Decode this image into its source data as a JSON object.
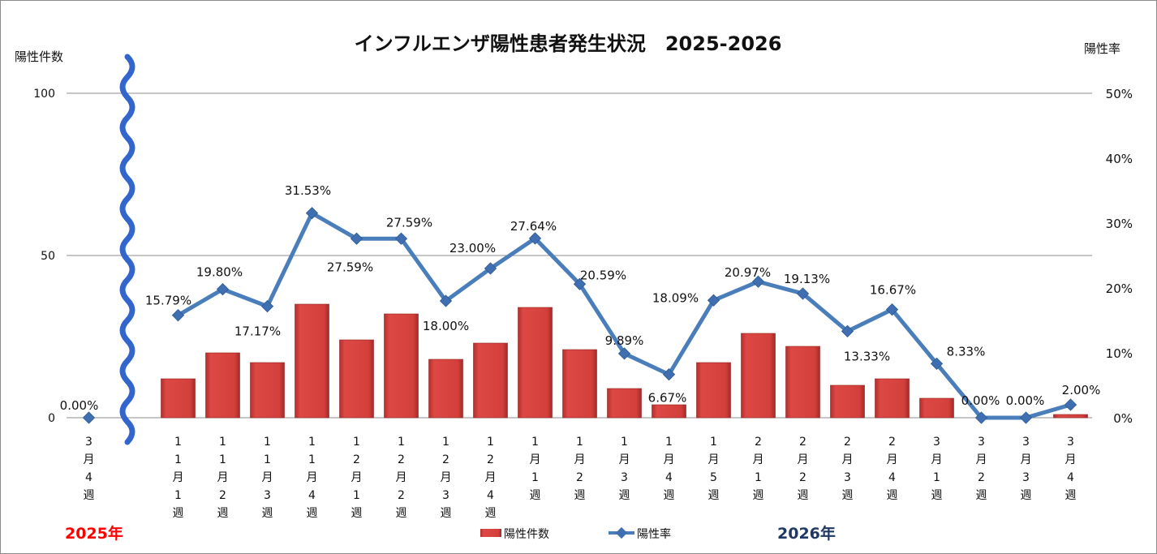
{
  "chart_data": {
    "type": "bar+line",
    "title": "インフルエンザ陽性患者発生状況　2025-2026",
    "ylabel_left": "陽性件数",
    "ylabel_right": "陽性率",
    "ylim_left": [
      0,
      100
    ],
    "yticks_left": [
      "0",
      "50",
      "100"
    ],
    "ylim_right": [
      0,
      50
    ],
    "yticks_right": [
      "0%",
      "10%",
      "20%",
      "30%",
      "40%",
      "50%"
    ],
    "grid": true,
    "legend_position": "bottom",
    "year_labels": {
      "start": "2025年",
      "end": "2026年"
    },
    "year_colors": {
      "start": "#ff0000",
      "end": "#1f3864"
    },
    "bar_color": "#c0392b",
    "line_color": "#4a7ebb",
    "break_marker_color": "#3366cc",
    "categories": [
      "3月4週",
      "11月1週",
      "11月2週",
      "11月3週",
      "11月4週",
      "12月1週",
      "12月2週",
      "12月3週",
      "12月4週",
      "1月1週",
      "1月2週",
      "1月3週",
      "1月4週",
      "1月5週",
      "2月1週",
      "2月2週",
      "2月3週",
      "2月4週",
      "3月1週",
      "3月2週",
      "3月3週",
      "3月4週"
    ],
    "series": [
      {
        "name": "陽性件数",
        "type": "bar",
        "axis": "left",
        "values": [
          0,
          12,
          20,
          17,
          35,
          24,
          32,
          18,
          23,
          34,
          21,
          9,
          4,
          17,
          26,
          22,
          10,
          12,
          6,
          0,
          0,
          1
        ]
      },
      {
        "name": "陽性率",
        "type": "line",
        "axis": "right",
        "values": [
          0.0,
          15.79,
          19.8,
          17.17,
          31.53,
          27.59,
          27.59,
          18.0,
          23.0,
          27.64,
          20.59,
          9.89,
          6.67,
          18.09,
          20.97,
          19.13,
          13.33,
          16.67,
          8.33,
          0.0,
          0.0,
          2.0
        ],
        "labels": [
          "0.00%",
          "15.79%",
          "19.80%",
          "17.17%",
          "31.53%",
          "27.59%",
          "27.59%",
          "18.00%",
          "23.00%",
          "27.64%",
          "20.59%",
          "9.89%",
          "6.67%",
          "18.09%",
          "20.97%",
          "19.13%",
          "13.33%",
          "16.67%",
          "8.33%",
          "0.00%",
          "0.00%",
          "2.00%"
        ]
      }
    ]
  }
}
